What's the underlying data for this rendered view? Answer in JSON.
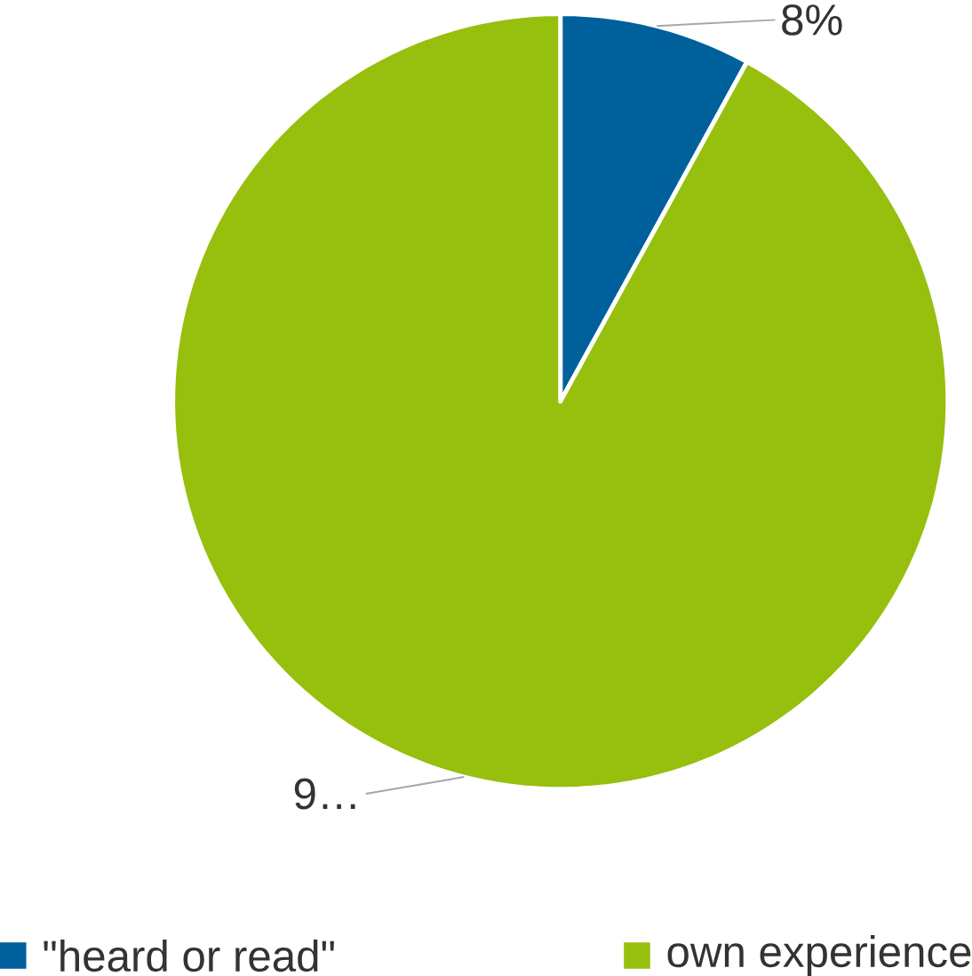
{
  "chart_data": {
    "type": "pie",
    "categories": [
      "\"heard or read\"",
      "own experience"
    ],
    "values": [
      8,
      92
    ],
    "colors": [
      "#00609c",
      "#97bf0d"
    ],
    "value_labels": [
      "8%",
      "9…"
    ],
    "legend": "bottom"
  }
}
